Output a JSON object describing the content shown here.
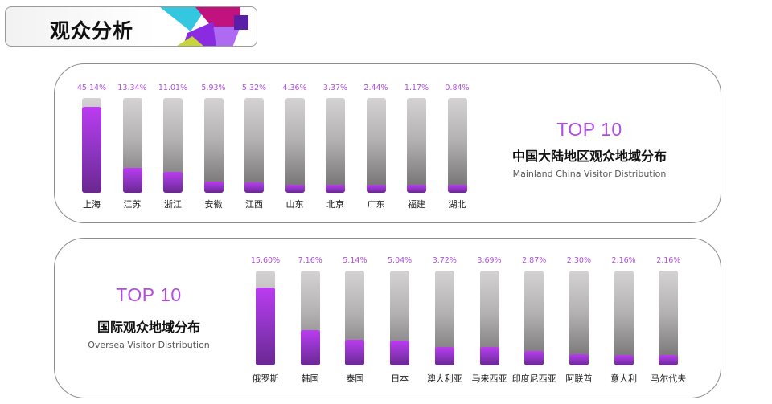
{
  "header": {
    "title": "观众分析",
    "colors": {
      "magenta": "#c2127e",
      "purple": "#8a2be2",
      "cyan": "#34c7e0",
      "lime": "#c6d63a"
    }
  },
  "mainland": {
    "top_label": "TOP 10",
    "title_cn": "中国大陆地区观众地域分布",
    "title_en": "Mainland China Visitor Distribution"
  },
  "oversea": {
    "top_label": "TOP 10",
    "title_cn": "国际观众地域分布",
    "title_en": "Oversea Visitor Distribution"
  },
  "colors": {
    "accent": "#b24ce4",
    "bar_fill": "#a23ad8",
    "bar_track": "#b3b1b2"
  },
  "chart_data": [
    {
      "type": "bar",
      "title": "中国大陆地区观众地域分布",
      "categories": [
        "上海",
        "江苏",
        "浙江",
        "安徽",
        "江西",
        "山东",
        "北京",
        "广东",
        "福建",
        "湖北"
      ],
      "values": [
        45.14,
        13.34,
        11.01,
        5.93,
        5.32,
        4.36,
        3.37,
        2.44,
        1.17,
        0.84
      ],
      "value_labels": [
        "45.14%",
        "13.34%",
        "11.01%",
        "5.93%",
        "5.32%",
        "4.36%",
        "3.37%",
        "2.44%",
        "1.17%",
        "0.84%"
      ],
      "unit": "%",
      "ylim": [
        0,
        50
      ],
      "grid": false,
      "legend": "none"
    },
    {
      "type": "bar",
      "title": "国际观众地域分布",
      "categories": [
        "俄罗斯",
        "韩国",
        "泰国",
        "日本",
        "澳大利亚",
        "马来西亚",
        "印度尼西亚",
        "阿联酋",
        "意大利",
        "马尔代夫"
      ],
      "values": [
        15.6,
        7.16,
        5.14,
        5.04,
        3.72,
        3.69,
        2.87,
        2.3,
        2.16,
        2.16
      ],
      "value_labels": [
        "15.60%",
        "7.16%",
        "5.14%",
        "5.04%",
        "3.72%",
        "3.69%",
        "2.87%",
        "2.30%",
        "2.16%",
        "2.16%"
      ],
      "unit": "%",
      "ylim": [
        0,
        19
      ],
      "grid": false,
      "legend": "none"
    }
  ]
}
